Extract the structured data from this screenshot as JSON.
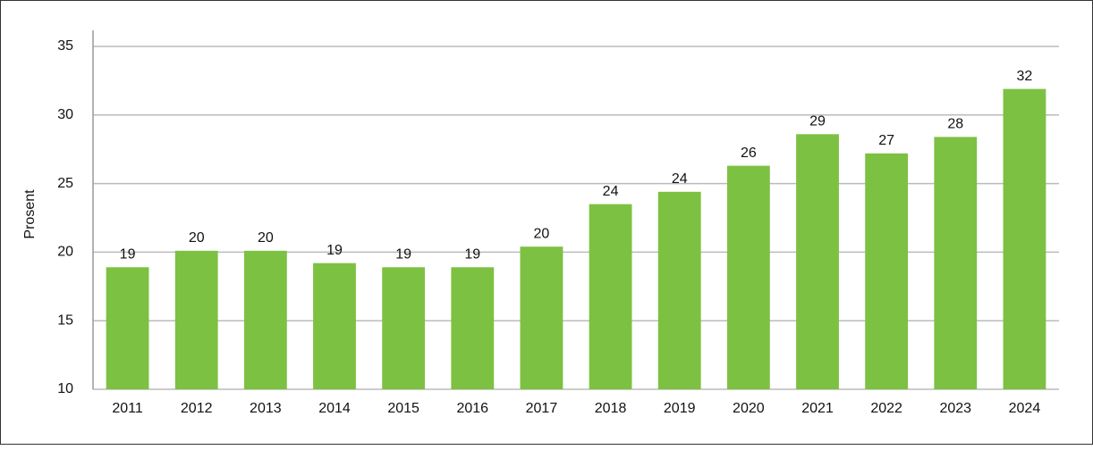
{
  "chart_data": {
    "type": "bar",
    "y_label": "Prosent",
    "categories": [
      "2011",
      "2012",
      "2013",
      "2014",
      "2015",
      "2016",
      "2017",
      "2018",
      "2019",
      "2020",
      "2021",
      "2022",
      "2023",
      "2024"
    ],
    "values": [
      18.9,
      20.1,
      20.1,
      19.2,
      18.9,
      18.9,
      20.4,
      23.5,
      24.4,
      26.3,
      28.6,
      27.2,
      28.4,
      31.9
    ],
    "value_labels": [
      "19",
      "20",
      "20",
      "19",
      "19",
      "19",
      "20",
      "24",
      "24",
      "26",
      "29",
      "27",
      "28",
      "32"
    ],
    "color": "#7dc142",
    "ylim": [
      10,
      35
    ],
    "yticks": [
      10,
      15,
      20,
      25,
      30,
      35
    ],
    "grid": true
  }
}
